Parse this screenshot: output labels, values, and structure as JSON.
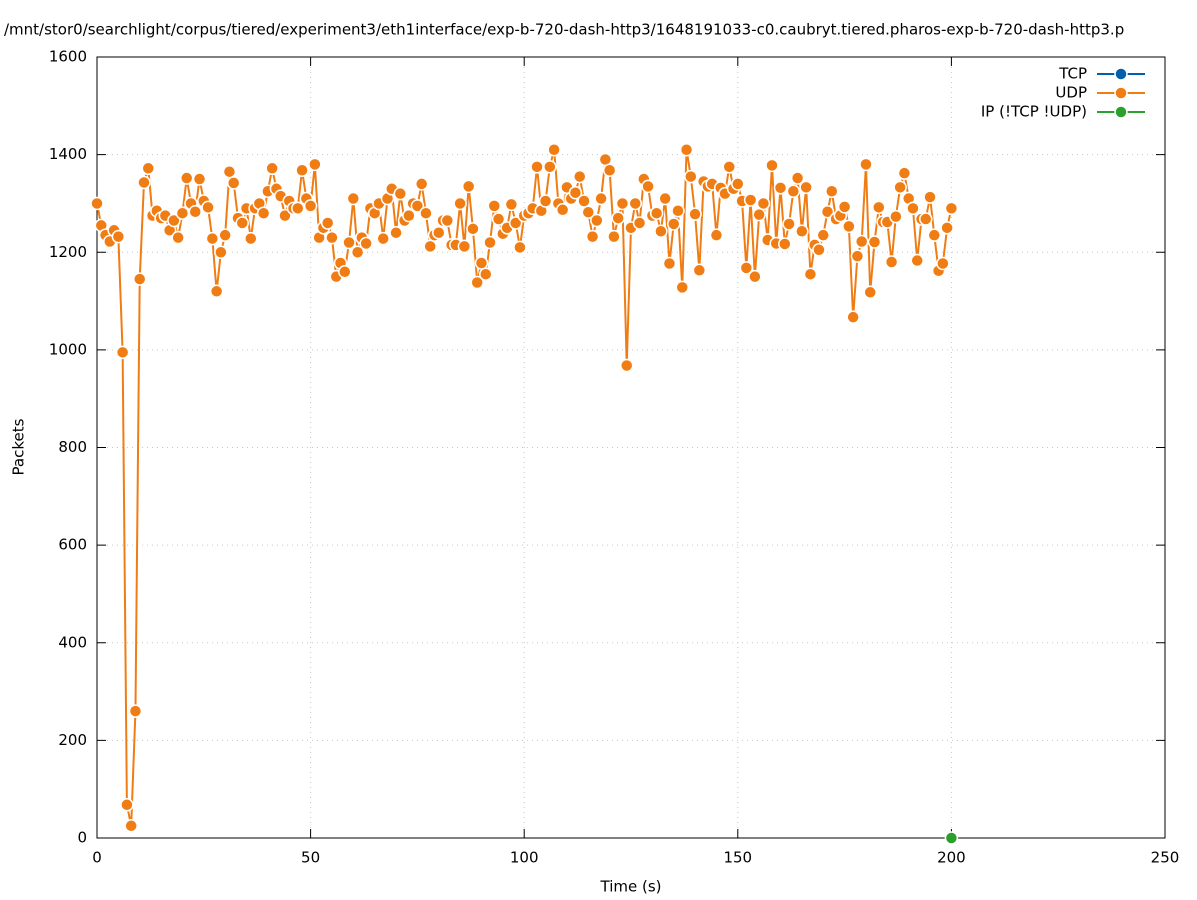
{
  "chart_data": {
    "type": "line",
    "title": "/mnt/stor0/searchlight/corpus/tiered/experiment3/eth1interface/exp-b-720-dash-http3/1648191033-c0.caubryt.tiered.pharos-exp-b-720-dash-http3.p",
    "xlabel": "Time (s)",
    "ylabel": "Packets",
    "xlim": [
      0,
      250
    ],
    "xticks": [
      0,
      50,
      100,
      150,
      200,
      250
    ],
    "ylim": [
      0,
      1600
    ],
    "yticks": [
      0,
      200,
      400,
      600,
      800,
      1000,
      1200,
      1400,
      1600
    ],
    "grid": true,
    "legend": "top-right",
    "series": [
      {
        "name": "TCP",
        "color": "#0060ad",
        "x": [],
        "values": []
      },
      {
        "name": "UDP",
        "color": "#f07c14",
        "x": [
          0,
          1,
          2,
          3,
          4,
          5,
          6,
          7,
          8,
          9,
          10,
          11,
          12,
          13,
          14,
          15,
          16,
          17,
          18,
          19,
          20,
          21,
          22,
          23,
          24,
          25,
          26,
          27,
          28,
          29,
          30,
          31,
          32,
          33,
          34,
          35,
          36,
          37,
          38,
          39,
          40,
          41,
          42,
          43,
          44,
          45,
          46,
          47,
          48,
          49,
          50,
          51,
          52,
          53,
          54,
          55,
          56,
          57,
          58,
          59,
          60,
          61,
          62,
          63,
          64,
          65,
          66,
          67,
          68,
          69,
          70,
          71,
          72,
          73,
          74,
          75,
          76,
          77,
          78,
          79,
          80,
          81,
          82,
          83,
          84,
          85,
          86,
          87,
          88,
          89,
          90,
          91,
          92,
          93,
          94,
          95,
          96,
          97,
          98,
          99,
          100,
          101,
          102,
          103,
          104,
          105,
          106,
          107,
          108,
          109,
          110,
          111,
          112,
          113,
          114,
          115,
          116,
          117,
          118,
          119,
          120,
          121,
          122,
          123,
          124,
          125,
          126,
          127,
          128,
          129,
          130,
          131,
          132,
          133,
          134,
          135,
          136,
          137,
          138,
          139,
          140,
          141,
          142,
          143,
          144,
          145,
          146,
          147,
          148,
          149,
          150,
          151,
          152,
          153,
          154,
          155,
          156,
          157,
          158,
          159,
          160,
          161,
          162,
          163,
          164,
          165,
          166,
          167,
          168,
          169,
          170,
          171,
          172,
          173,
          174,
          175,
          176,
          177,
          178,
          179,
          180,
          181,
          182,
          183,
          184,
          185,
          186,
          187,
          188,
          189,
          190,
          191,
          192,
          193,
          194,
          195,
          196,
          197,
          198,
          199,
          200
        ],
        "values": [
          1300,
          1255,
          1235,
          1222,
          1245,
          1232,
          995,
          68,
          25,
          260,
          1145,
          1343,
          1372,
          1275,
          1285,
          1270,
          1275,
          1245,
          1265,
          1230,
          1280,
          1352,
          1300,
          1283,
          1350,
          1305,
          1292,
          1228,
          1120,
          1200,
          1235,
          1365,
          1342,
          1270,
          1260,
          1290,
          1228,
          1290,
          1300,
          1280,
          1325,
          1372,
          1330,
          1315,
          1275,
          1305,
          1290,
          1290,
          1368,
          1310,
          1295,
          1380,
          1230,
          1250,
          1260,
          1230,
          1150,
          1178,
          1160,
          1220,
          1310,
          1200,
          1230,
          1218,
          1290,
          1280,
          1300,
          1228,
          1310,
          1330,
          1240,
          1320,
          1265,
          1275,
          1300,
          1295,
          1340,
          1280,
          1212,
          1235,
          1240,
          1265,
          1265,
          1215,
          1215,
          1300,
          1212,
          1335,
          1248,
          1138,
          1178,
          1155,
          1220,
          1295,
          1268,
          1238,
          1250,
          1298,
          1260,
          1210,
          1275,
          1280,
          1290,
          1375,
          1285,
          1305,
          1375,
          1410,
          1300,
          1287,
          1333,
          1310,
          1322,
          1355,
          1305,
          1282,
          1232,
          1265,
          1310,
          1390,
          1368,
          1232,
          1270,
          1300,
          968,
          1250,
          1300,
          1260,
          1350,
          1335,
          1275,
          1280,
          1243,
          1310,
          1177,
          1258,
          1285,
          1128,
          1410,
          1355,
          1278,
          1163,
          1345,
          1335,
          1340,
          1235,
          1332,
          1320,
          1375,
          1330,
          1340,
          1305,
          1168,
          1307,
          1150,
          1277,
          1300,
          1225,
          1378,
          1218,
          1332,
          1217,
          1258,
          1325,
          1352,
          1243,
          1333,
          1155,
          1215,
          1205,
          1235,
          1283,
          1325,
          1268,
          1275,
          1293,
          1253,
          1067,
          1192,
          1222,
          1380,
          1118,
          1221,
          1292,
          1262,
          1262,
          1180,
          1273,
          1333,
          1362,
          1310,
          1290,
          1183,
          1268,
          1268,
          1313,
          1235,
          1162,
          1177,
          1250,
          1290
        ]
      },
      {
        "name": "IP (!TCP  !UDP)",
        "color": "#2ca02c",
        "x": [
          200
        ],
        "values": [
          0
        ]
      }
    ]
  }
}
